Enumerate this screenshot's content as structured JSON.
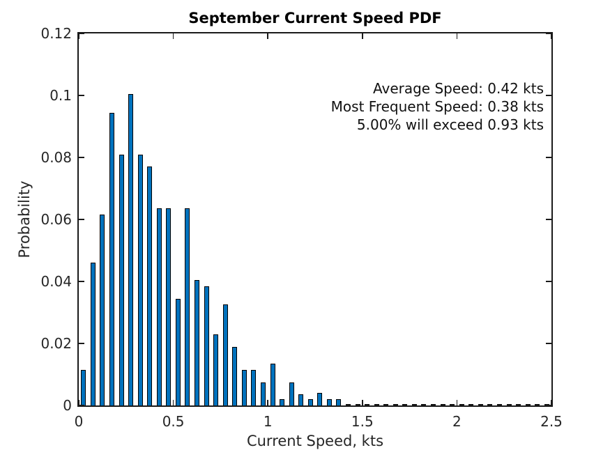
{
  "colors": {
    "bar_fill": "#0072BD",
    "bar_edge": "#000000",
    "axis": "#1a1a1a",
    "text": "#262626"
  },
  "annotation": {
    "lines": [
      "Average Speed: 0.42 kts",
      "Most Frequent Speed: 0.38 kts",
      "5.00% will exceed 0.93 kts"
    ]
  },
  "chart_data": {
    "type": "bar",
    "title": "September Current Speed PDF",
    "xlabel": "Current Speed, kts",
    "ylabel": "Probability",
    "xlim": [
      0,
      2.5
    ],
    "ylim": [
      0,
      0.12
    ],
    "grid": false,
    "legend": "none",
    "bin_width": 0.05,
    "bar_display_width": 0.025,
    "xticks": [
      0,
      0.5,
      1,
      1.5,
      2,
      2.5
    ],
    "xtick_labels": [
      "0",
      "0.5",
      "1",
      "1.5",
      "2",
      "2.5"
    ],
    "yticks": [
      0,
      0.02,
      0.04,
      0.06,
      0.08,
      0.1,
      0.12
    ],
    "ytick_labels": [
      "0",
      "0.02",
      "0.04",
      "0.06",
      "0.08",
      "0.1",
      "0.12"
    ],
    "x": [
      0.025,
      0.075,
      0.125,
      0.175,
      0.225,
      0.275,
      0.325,
      0.375,
      0.425,
      0.475,
      0.525,
      0.575,
      0.625,
      0.675,
      0.725,
      0.775,
      0.825,
      0.875,
      0.925,
      0.975,
      1.025,
      1.075,
      1.125,
      1.175,
      1.225,
      1.275,
      1.325,
      1.375,
      1.425,
      1.475,
      1.525,
      1.575,
      1.625,
      1.675,
      1.725,
      1.775,
      1.825,
      1.875,
      1.925,
      1.975,
      2.025,
      2.075,
      2.125,
      2.175,
      2.225,
      2.275,
      2.325,
      2.375,
      2.425,
      2.475
    ],
    "values": [
      0.0115,
      0.046,
      0.0615,
      0.0945,
      0.081,
      0.1005,
      0.081,
      0.077,
      0.0635,
      0.0635,
      0.0345,
      0.0635,
      0.0405,
      0.0385,
      0.023,
      0.0325,
      0.019,
      0.0115,
      0.0115,
      0.0075,
      0.0135,
      0.002,
      0.0075,
      0.0035,
      0.002,
      0.004,
      0.002,
      0.002,
      0,
      0,
      0,
      0,
      0,
      0,
      0,
      0,
      0,
      0,
      0,
      0,
      0,
      0,
      0,
      0,
      0,
      0,
      0,
      0,
      0,
      0
    ]
  }
}
